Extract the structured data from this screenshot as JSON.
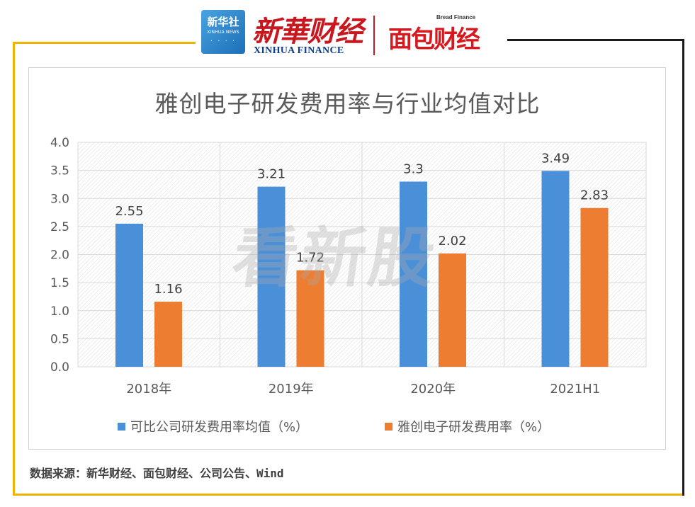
{
  "header": {
    "xinhuashe_cn": "新华社",
    "xinhuashe_en": "XINHUA NEWS",
    "xinhua_finance_cn": "新華财经",
    "xinhua_finance_en": "XINHUA FINANCE",
    "bread_finance_en": "Bread Finance",
    "bread_finance_cn": "面包财经"
  },
  "watermark": "看新股",
  "chart_data": {
    "type": "bar",
    "title": "雅创电子研发费用率与行业均值对比",
    "categories": [
      "2018年",
      "2019年",
      "2020年",
      "2021H1"
    ],
    "series": [
      {
        "name": "可比公司研发费用率均值（%）",
        "values": [
          2.55,
          3.21,
          3.3,
          3.49
        ],
        "labels": [
          "2.55",
          "3.21",
          "3.3",
          "3.49"
        ],
        "color": "#4a90d9"
      },
      {
        "name": "雅创电子研发费用率（%）",
        "values": [
          1.16,
          1.72,
          2.02,
          2.83
        ],
        "labels": [
          "1.16",
          "1.72",
          "2.02",
          "2.83"
        ],
        "color": "#ed7d31"
      }
    ],
    "yticks": [
      "0.0",
      "0.5",
      "1.0",
      "1.5",
      "2.0",
      "2.5",
      "3.0",
      "3.5",
      "4.0"
    ],
    "ylim": [
      0,
      4
    ],
    "xlabel": "",
    "ylabel": "",
    "legend": "bottom",
    "grid": true
  },
  "source": "数据来源：新华财经、面包财经、公司公告、Wind",
  "colors": {
    "accent_gold": "#f0b400",
    "brand_red": "#c8171e"
  }
}
